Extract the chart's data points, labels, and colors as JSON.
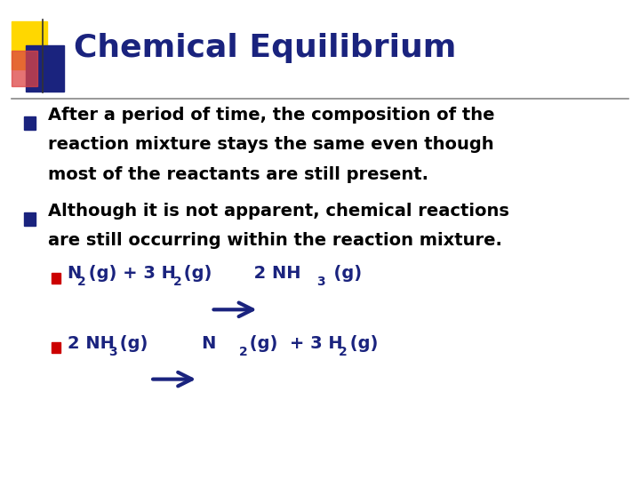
{
  "title": "Chemical Equilibrium",
  "title_color": "#1a237e",
  "title_fontsize": 26,
  "bg_color": "#ffffff",
  "bullet_color": "#1a237e",
  "text_color": "#000000",
  "eq_text_color": "#1a237e",
  "red_bullet_color": "#cc0000",
  "arrow_color": "#1a237e",
  "bullet1_line1": "After a period of time, the composition of the",
  "bullet1_line2": "reaction mixture stays the same even though",
  "bullet1_line3": "most of the reactants are still present.",
  "bullet2_line1": "Although it is not apparent, chemical reactions",
  "bullet2_line2": "are still occurring within the reaction mixture.",
  "header_line_color": "#888888",
  "yellow_color": "#FFD700",
  "blue_color": "#1a237e",
  "red_color": "#dd4444",
  "body_fontsize": 14,
  "sub_fontsize": 10
}
